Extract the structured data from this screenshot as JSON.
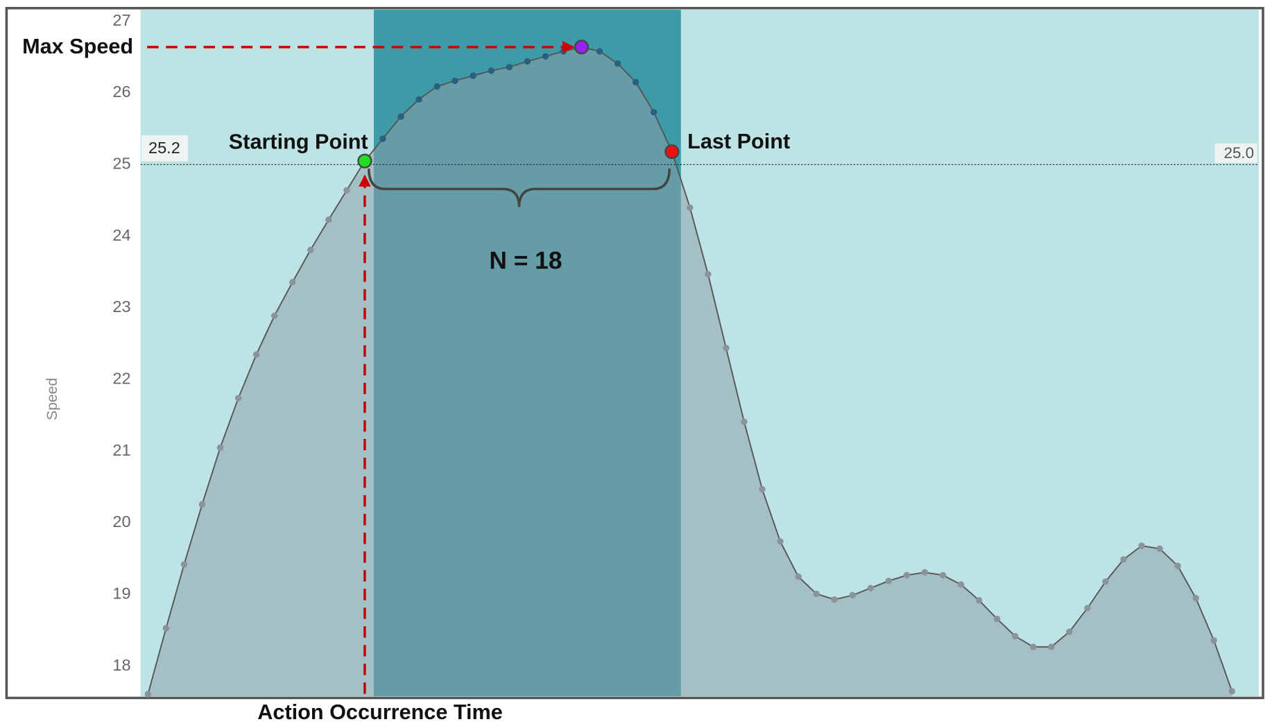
{
  "chart_data": {
    "type": "area",
    "y_label": "Speed",
    "x_label": "Action Occurrence Time",
    "values": [
      17.61,
      18.53,
      19.42,
      20.26,
      21.05,
      21.74,
      22.35,
      22.89,
      23.36,
      23.81,
      24.23,
      24.64,
      25.05,
      25.36,
      25.67,
      25.91,
      26.09,
      26.17,
      26.24,
      26.31,
      26.36,
      26.44,
      26.51,
      26.58,
      26.64,
      26.58,
      26.41,
      26.15,
      25.73,
      25.18,
      24.4,
      23.47,
      22.44,
      21.41,
      20.47,
      19.74,
      19.25,
      19.01,
      18.93,
      18.99,
      19.09,
      19.19,
      19.27,
      19.31,
      19.27,
      19.14,
      18.92,
      18.66,
      18.42,
      18.27,
      18.27,
      18.48,
      18.81,
      19.18,
      19.49,
      19.68,
      19.64,
      19.4,
      18.95,
      18.36,
      17.65
    ],
    "color": "#555555",
    "ylim": [
      17.58,
      27.16
    ],
    "yticks": [
      18,
      19,
      20,
      21,
      22,
      23,
      24,
      25,
      26,
      27
    ],
    "threshold": {
      "value": 25.0,
      "label": "25.0"
    },
    "threshold_left_label": "25.2",
    "highlights": [
      {
        "label": "Starting Point",
        "index": 12,
        "color": "#22dd22"
      },
      {
        "label": "Max Speed",
        "index": 24,
        "color": "#9922ee"
      },
      {
        "label": "Last Point",
        "index": 29,
        "color": "#ee1111"
      }
    ],
    "window_label": "N = 18"
  }
}
